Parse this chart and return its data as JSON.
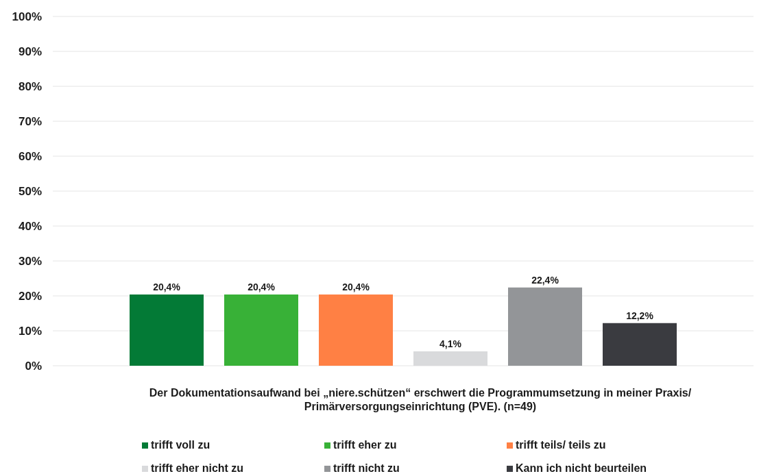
{
  "chart_data": {
    "type": "bar",
    "categories": [
      null
    ],
    "xlabel": "Der Dokumentationsaufwand bei „niere.schützen“ erschwert die Programmumsetzung in meiner Praxis/ Primärversorgungseinrichtung (PVE). (n=49)",
    "series": [
      {
        "name": "trifft voll zu",
        "color": "#037a36",
        "values": [
          20.4
        ],
        "value_labels": [
          "20,4%"
        ]
      },
      {
        "name": "trifft eher zu",
        "color": "#38b137",
        "values": [
          20.4
        ],
        "value_labels": [
          "20,4%"
        ]
      },
      {
        "name": "trifft teils/ teils zu",
        "color": "#ff8044",
        "values": [
          20.4
        ],
        "value_labels": [
          "20,4%"
        ]
      },
      {
        "name": "trifft eher nicht zu",
        "color": "#d9dadc",
        "values": [
          4.1
        ],
        "value_labels": [
          "4,1%"
        ]
      },
      {
        "name": "trifft nicht zu",
        "color": "#939598",
        "values": [
          22.4
        ],
        "value_labels": [
          "22,4%"
        ]
      },
      {
        "name": "Kann ich nicht beurteilen",
        "color": "#3a3b40",
        "values": [
          12.2
        ],
        "value_labels": [
          "12,2%"
        ]
      }
    ],
    "ylim": [
      0,
      100
    ],
    "yticks": [
      {
        "value": 0,
        "label": "0%"
      },
      {
        "value": 10,
        "label": "10%"
      },
      {
        "value": 20,
        "label": "20%"
      },
      {
        "value": 30,
        "label": "30%"
      },
      {
        "value": 40,
        "label": "40%"
      },
      {
        "value": 50,
        "label": "50%"
      },
      {
        "value": 60,
        "label": "60%"
      },
      {
        "value": 70,
        "label": "70%"
      },
      {
        "value": 80,
        "label": "80%"
      },
      {
        "value": 90,
        "label": "90%"
      },
      {
        "value": 100,
        "label": "100%"
      }
    ],
    "grid": "y",
    "legend": "bottom"
  }
}
